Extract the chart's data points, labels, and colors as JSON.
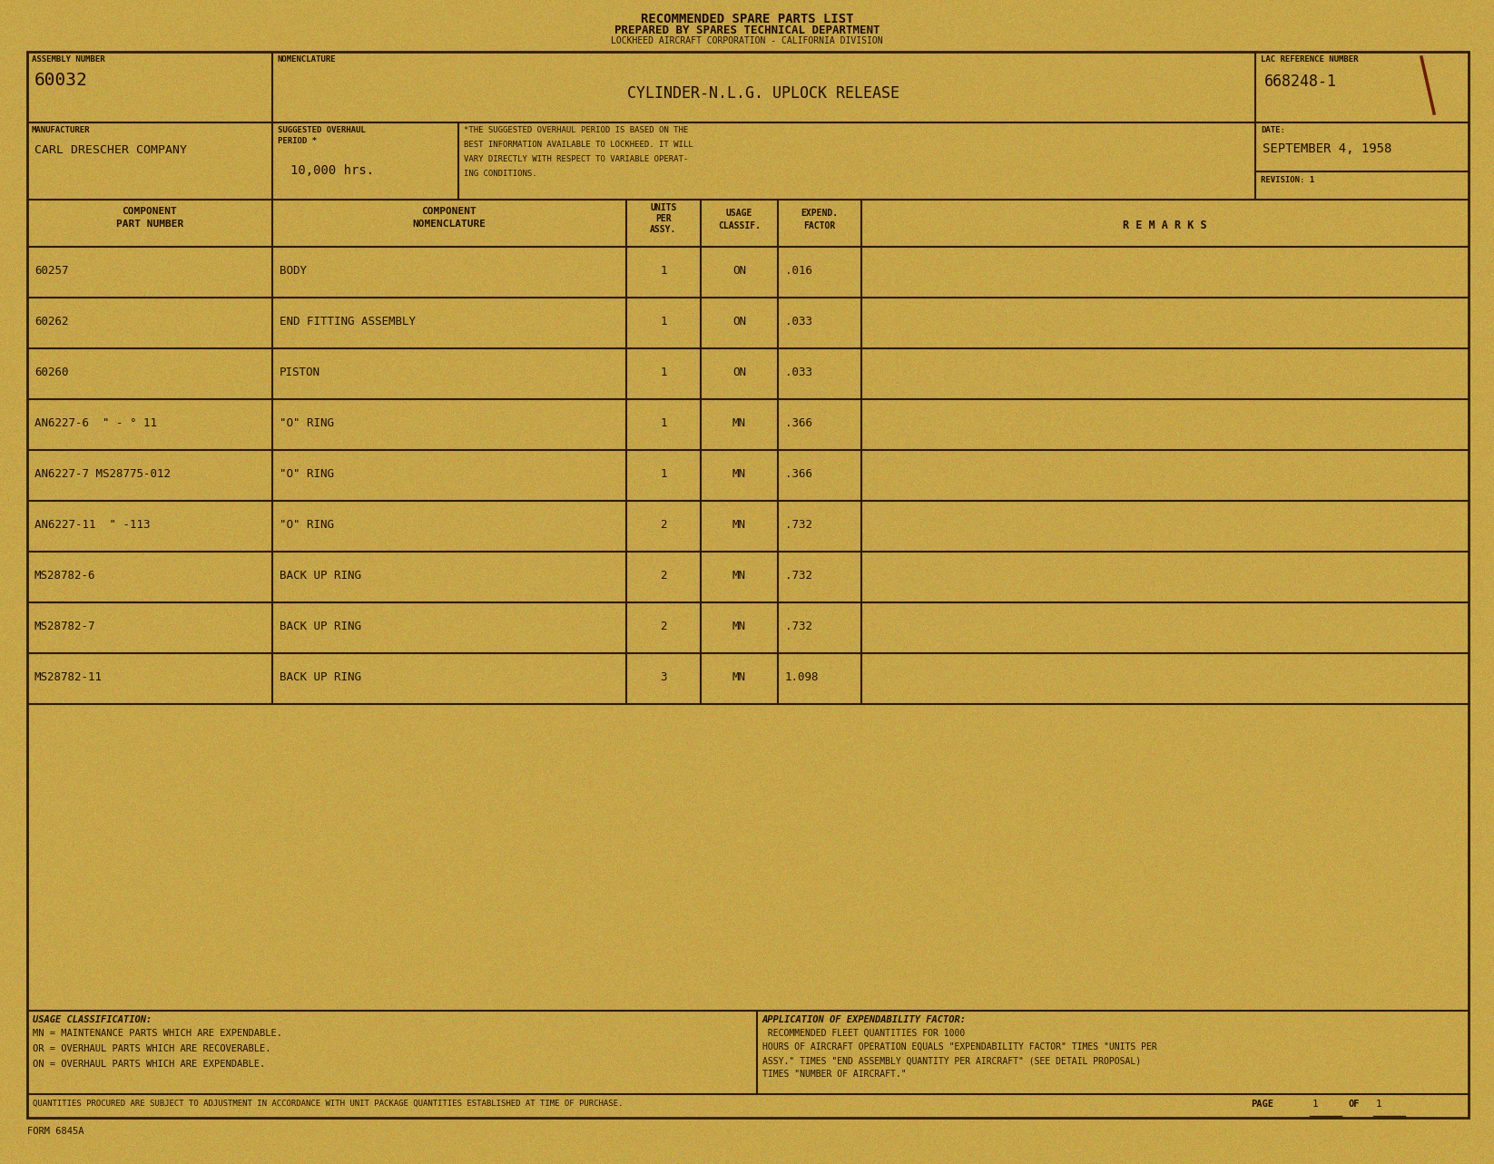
{
  "bg_color": "#C9A84C",
  "border_color": "#2C1A00",
  "text_color": "#1A0D00",
  "title1": "RECOMMENDED SPARE PARTS LIST",
  "title2": "PREPARED BY SPARES TECHNICAL DEPARTMENT",
  "title3": "LOCKHEED AIRCRAFT CORPORATION - CALIFORNIA DIVISION",
  "assembly_number_label": "ASSEMBLY NUMBER",
  "assembly_number": "60032",
  "nomenclature_label": "NOMENCLATURE",
  "nomenclature_value": "CYLINDER-N.L.G. UPLOCK RELEASE",
  "lac_ref_label": "LAC REFERENCE NUMBER",
  "lac_ref": "668248-1",
  "manufacturer_label": "MANUFACTURER",
  "manufacturer": "CARL DRESCHER COMPANY",
  "overhaul_label1": "SUGGESTED OVERHAUL",
  "overhaul_label2": "PERIOD *",
  "overhaul_value": "10,000 hrs.",
  "overhaul_note_lines": [
    "*THE SUGGESTED OVERHAUL PERIOD IS BASED ON THE",
    "BEST INFORMATION AVAILABLE TO LOCKHEED. IT WILL",
    "VARY DIRECTLY WITH RESPECT TO VARIABLE OPERAT-",
    "ING CONDITIONS."
  ],
  "date_label": "DATE:",
  "date_value": "SEPTEMBER 4, 1958",
  "revision_label": "REVISION: 1",
  "col_part_label1": "COMPONENT",
  "col_part_label2": "PART NUMBER",
  "col_nom_label1": "COMPONENT",
  "col_nom_label2": "NOMENCLATURE",
  "col_units_label1": "UNITS",
  "col_units_label2": "PER",
  "col_units_label3": "ASSY.",
  "col_usage_label1": "USAGE",
  "col_usage_label2": "CLASSIF.",
  "col_expend_label1": "EXPEND.",
  "col_expend_label2": "FACTOR",
  "col_remarks_label": "R E M A R K S",
  "parts": [
    {
      "part": "60257",
      "nom": "BODY",
      "units": "1",
      "usage": "ON",
      "expend": ".016"
    },
    {
      "part": "60262",
      "nom": "END FITTING ASSEMBLY",
      "units": "1",
      "usage": "ON",
      "expend": ".033"
    },
    {
      "part": "60260",
      "nom": "PISTON",
      "units": "1",
      "usage": "ON",
      "expend": ".033"
    },
    {
      "part": "AN6227-6  \" - ° 11",
      "nom": "\"O\" RING",
      "units": "1",
      "usage": "MN",
      "expend": ".366"
    },
    {
      "part": "AN6227-7 MS28775-012",
      "nom": "\"O\" RING",
      "units": "1",
      "usage": "MN",
      "expend": ".366"
    },
    {
      "part": "AN6227-11  \" -113",
      "nom": "\"O\" RING",
      "units": "2",
      "usage": "MN",
      "expend": ".732"
    },
    {
      "part": "MS28782-6",
      "nom": "BACK UP RING",
      "units": "2",
      "usage": "MN",
      "expend": ".732"
    },
    {
      "part": "MS28782-7",
      "nom": "BACK UP RING",
      "units": "2",
      "usage": "MN",
      "expend": ".732"
    },
    {
      "part": "MS28782-11",
      "nom": "BACK UP RING",
      "units": "3",
      "usage": "MN",
      "expend": "1.098"
    }
  ],
  "usage_class_title": "USAGE CLASSIFICATION:",
  "usage_class_lines": [
    "MN = MAINTENANCE PARTS WHICH ARE EXPENDABLE.",
    "OR = OVERHAUL PARTS WHICH ARE RECOVERABLE.",
    "ON = OVERHAUL PARTS WHICH ARE EXPENDABLE."
  ],
  "expend_title": "APPLICATION OF EXPENDABILITY FACTOR:",
  "expend_lines": [
    " RECOMMENDED FLEET QUANTITIES FOR 1000",
    "HOURS OF AIRCRAFT OPERATION EQUALS \"EXPENDABILITY FACTOR\" TIMES \"UNITS PER",
    "ASSY.\" TIMES \"END ASSEMBLY QUANTITY PER AIRCRAFT\" (SEE DETAIL PROPOSAL)",
    "TIMES \"NUMBER OF AIRCRAFT.\""
  ],
  "footer_note": "QUANTITIES PROCURED ARE SUBJECT TO ADJUSTMENT IN ACCORDANCE WITH UNIT PACKAGE QUANTITIES ESTABLISHED AT TIME OF PURCHASE.",
  "page_text": "PAGE",
  "page_num": "1",
  "of_text": "OF",
  "total_pages": "1",
  "form_id": "FORM 6845A",
  "pen_mark_color": "#6B1A00"
}
